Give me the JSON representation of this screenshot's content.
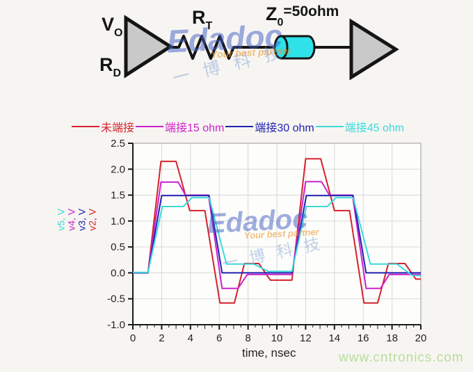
{
  "page": {
    "background": "#f7f5f2",
    "footer_link": "www.cntronics.com",
    "footer_color": "#b9dd9b"
  },
  "circuit": {
    "driver_output_label": "V",
    "driver_output_sub": "O",
    "driver_resistance_label": "R",
    "driver_resistance_sub": "D",
    "termination_label": "R",
    "termination_sub": "T",
    "impedance_label": "Z",
    "impedance_sub": "0",
    "impedance_value": "=50ohm",
    "shape_fill": "#c9c9c9",
    "outline_color": "#151515",
    "tline_fill": "#2fe1e8"
  },
  "watermark": {
    "brand": "Edadoc",
    "tagline": "Your best partner",
    "cn": "一博科技"
  },
  "chart_data": {
    "type": "line",
    "xlabel": "time, nsec",
    "ylabel_parts": [
      {
        "text": "v5, V",
        "color": "#3dd9db"
      },
      {
        "text": "v4, V",
        "color": "#cc22cc"
      },
      {
        "text": "v3, V",
        "color": "#2222b2"
      },
      {
        "text": "v2, V",
        "color": "#d3222d"
      }
    ],
    "xlim": [
      0,
      20
    ],
    "ylim": [
      -1.0,
      2.5
    ],
    "grid": true,
    "grid_color": "#d8d8d8",
    "frame_color": "#999999",
    "axis_color": "#1a1a1a",
    "xticks": [
      {
        "v": 0,
        "label": "0"
      },
      {
        "v": 2,
        "label": "2"
      },
      {
        "v": 4,
        "label": "4"
      },
      {
        "v": 6,
        "label": "6"
      },
      {
        "v": 8,
        "label": "8"
      },
      {
        "v": 10,
        "label": "10"
      },
      {
        "v": 12,
        "label": "12"
      },
      {
        "v": 14,
        "label": "14"
      },
      {
        "v": 16,
        "label": "16"
      },
      {
        "v": 18,
        "label": "18"
      },
      {
        "v": 20,
        "label": "20"
      }
    ],
    "x_minor_step": 0.5,
    "yticks": [
      {
        "v": 2.5,
        "label": "2.5"
      },
      {
        "v": 2.0,
        "label": "2.0"
      },
      {
        "v": 1.5,
        "label": "1.5"
      },
      {
        "v": 1.0,
        "label": "1.0"
      },
      {
        "v": 0.5,
        "label": "0.5"
      },
      {
        "v": 0.0,
        "label": "0.0"
      },
      {
        "v": -0.5,
        "label": "-0.5"
      },
      {
        "v": -1.0,
        "label": "-1.0"
      }
    ],
    "legend": {
      "position": "top",
      "items": [
        {
          "label": "未端接",
          "color": "#d3222d"
        },
        {
          "label": "端接15 ohm",
          "color": "#cc22cc"
        },
        {
          "label": "端接30 ohm",
          "color": "#2222b2"
        },
        {
          "label": "端接45 ohm",
          "color": "#3dd9db"
        }
      ]
    },
    "series": [
      {
        "id": "unterminated",
        "name": "未端接 (v2)",
        "color": "#d3222d",
        "points": [
          [
            0,
            0
          ],
          [
            1.05,
            0
          ],
          [
            1.95,
            2.15
          ],
          [
            3.0,
            2.15
          ],
          [
            3.95,
            1.2
          ],
          [
            5.0,
            1.2
          ],
          [
            6.05,
            -0.58
          ],
          [
            7.05,
            -0.58
          ],
          [
            7.75,
            0.18
          ],
          [
            8.75,
            0.18
          ],
          [
            9.55,
            -0.14
          ],
          [
            11.05,
            -0.14
          ],
          [
            12.0,
            2.2
          ],
          [
            13.05,
            2.2
          ],
          [
            14.0,
            1.2
          ],
          [
            15.05,
            1.2
          ],
          [
            16.05,
            -0.58
          ],
          [
            17.0,
            -0.58
          ],
          [
            17.75,
            0.18
          ],
          [
            18.9,
            0.18
          ],
          [
            19.65,
            -0.12
          ],
          [
            20,
            -0.12
          ]
        ]
      },
      {
        "id": "term-15ohm",
        "name": "端接15 ohm (v4)",
        "color": "#cc22cc",
        "points": [
          [
            0,
            0
          ],
          [
            1.05,
            0
          ],
          [
            1.95,
            1.75
          ],
          [
            3.15,
            1.75
          ],
          [
            3.65,
            1.5
          ],
          [
            5.25,
            1.5
          ],
          [
            6.2,
            -0.3
          ],
          [
            7.3,
            -0.3
          ],
          [
            7.95,
            -0.03
          ],
          [
            11.05,
            -0.03
          ],
          [
            12.0,
            1.76
          ],
          [
            13.1,
            1.76
          ],
          [
            13.65,
            1.5
          ],
          [
            15.25,
            1.5
          ],
          [
            16.2,
            -0.3
          ],
          [
            17.2,
            -0.3
          ],
          [
            17.8,
            -0.03
          ],
          [
            20,
            -0.03
          ]
        ]
      },
      {
        "id": "term-30ohm",
        "name": "端接30 ohm (v3)",
        "color": "#2222b2",
        "points": [
          [
            0,
            0
          ],
          [
            1.05,
            0
          ],
          [
            2.0,
            1.49
          ],
          [
            5.3,
            1.49
          ],
          [
            6.2,
            0
          ],
          [
            11.05,
            0
          ],
          [
            12.05,
            1.49
          ],
          [
            15.3,
            1.49
          ],
          [
            16.2,
            0
          ],
          [
            20,
            0
          ]
        ]
      },
      {
        "id": "term-45ohm",
        "name": "端接45 ohm (v5)",
        "color": "#3dd9db",
        "points": [
          [
            0,
            0.01
          ],
          [
            1.05,
            0.01
          ],
          [
            2.05,
            1.28
          ],
          [
            3.5,
            1.28
          ],
          [
            4.1,
            1.45
          ],
          [
            5.3,
            1.45
          ],
          [
            6.5,
            0.17
          ],
          [
            8.4,
            0.17
          ],
          [
            9.4,
            0.03
          ],
          [
            11.05,
            0.03
          ],
          [
            12.05,
            1.28
          ],
          [
            13.5,
            1.28
          ],
          [
            14.1,
            1.45
          ],
          [
            15.3,
            1.45
          ],
          [
            16.5,
            0.17
          ],
          [
            18.35,
            0.17
          ],
          [
            19.4,
            -0.05
          ],
          [
            20,
            -0.05
          ]
        ]
      }
    ]
  }
}
